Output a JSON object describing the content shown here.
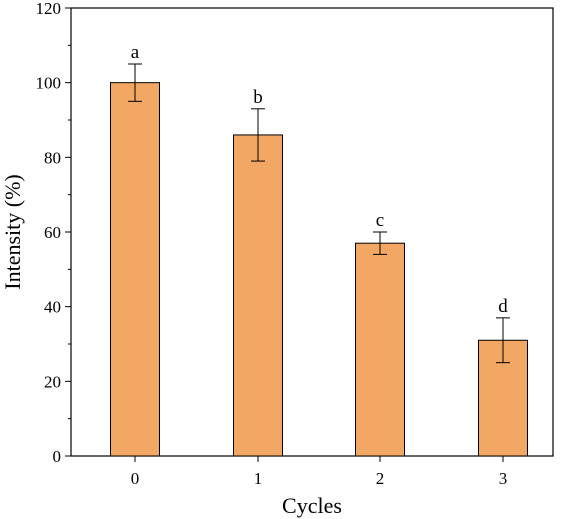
{
  "chart_data": {
    "type": "bar",
    "categories": [
      "0",
      "1",
      "2",
      "3"
    ],
    "values": [
      100,
      86,
      57,
      31
    ],
    "error_high": [
      105,
      93,
      60,
      37
    ],
    "error_low": [
      95,
      79,
      54,
      25
    ],
    "significance_labels": [
      "a",
      "b",
      "c",
      "d"
    ],
    "xlabel": "Cycles",
    "ylabel": "Intensity (%)",
    "ylim": [
      0,
      120
    ],
    "yticks": [
      0,
      20,
      40,
      60,
      80,
      100,
      120
    ],
    "grid": false,
    "bar_color": "#F2A765",
    "bar_edge_color": "#000000"
  }
}
